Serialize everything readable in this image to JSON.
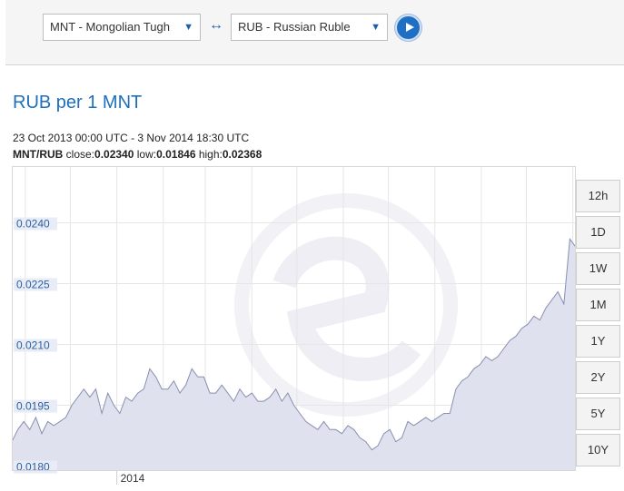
{
  "converter": {
    "from_currency": "MNT - Mongolian Tugh",
    "to_currency": "RUB - Russian Ruble",
    "swap_symbol": "↔",
    "dropdown_caret": "▼"
  },
  "title": "RUB per 1 MNT",
  "date_range": "23 Oct 2013 00:00 UTC - 3 Nov 2014 18:30 UTC",
  "stats": {
    "pair": "MNT/RUB",
    "close_label": "close:",
    "close": "0.02340",
    "low_label": "low:",
    "low": "0.01846",
    "high_label": "high:",
    "high": "0.02368"
  },
  "periods": [
    "12h",
    "1D",
    "1W",
    "1M",
    "1Y",
    "2Y",
    "5Y",
    "10Y"
  ],
  "colors": {
    "accent": "#1d6fbf",
    "line": "#8890b0",
    "fill": "#dfe1ee"
  },
  "chart_data": {
    "type": "area",
    "xlabel": "",
    "ylabel": "",
    "x_tick_labels": [
      "2014"
    ],
    "y_tick_labels": [
      "0.0180",
      "0.0195",
      "0.0210",
      "0.0225",
      "0.0240"
    ],
    "y_ticks": [
      0.018,
      0.0195,
      0.021,
      0.0225,
      0.024
    ],
    "ylim": [
      0.0179,
      0.0254
    ],
    "xlim": [
      "2013-10-23",
      "2014-11-03"
    ],
    "grid": true,
    "series": [
      {
        "x": [
          "2013-10-23",
          "2013-10-27",
          "2013-10-31",
          "2013-11-04",
          "2013-11-08",
          "2013-11-12",
          "2013-11-16",
          "2013-11-20",
          "2013-11-24",
          "2013-11-28",
          "2013-12-02",
          "2013-12-06",
          "2013-12-10",
          "2013-12-14",
          "2013-12-18",
          "2013-12-22",
          "2013-12-26",
          "2013-12-30",
          "2014-01-03",
          "2014-01-07",
          "2014-01-11",
          "2014-01-15",
          "2014-01-19",
          "2014-01-23",
          "2014-01-27",
          "2014-01-31",
          "2014-02-04",
          "2014-02-08",
          "2014-02-12",
          "2014-02-16",
          "2014-02-20",
          "2014-02-24",
          "2014-02-28",
          "2014-03-04",
          "2014-03-08",
          "2014-03-12",
          "2014-03-16",
          "2014-03-20",
          "2014-03-24",
          "2014-03-28",
          "2014-04-01",
          "2014-04-05",
          "2014-04-09",
          "2014-04-13",
          "2014-04-17",
          "2014-04-21",
          "2014-04-25",
          "2014-04-29",
          "2014-05-03",
          "2014-05-07",
          "2014-05-11",
          "2014-05-15",
          "2014-05-19",
          "2014-05-23",
          "2014-05-27",
          "2014-05-31",
          "2014-06-04",
          "2014-06-08",
          "2014-06-12",
          "2014-06-16",
          "2014-06-20",
          "2014-06-24",
          "2014-06-28",
          "2014-07-02",
          "2014-07-06",
          "2014-07-10",
          "2014-07-14",
          "2014-07-18",
          "2014-07-22",
          "2014-07-26",
          "2014-07-30",
          "2014-08-03",
          "2014-08-07",
          "2014-08-11",
          "2014-08-15",
          "2014-08-19",
          "2014-08-23",
          "2014-08-27",
          "2014-08-31",
          "2014-09-04",
          "2014-09-08",
          "2014-09-12",
          "2014-09-16",
          "2014-09-20",
          "2014-09-24",
          "2014-09-28",
          "2014-10-02",
          "2014-10-06",
          "2014-10-10",
          "2014-10-14",
          "2014-10-18",
          "2014-10-22",
          "2014-10-26",
          "2014-10-30",
          "2014-11-03"
        ],
        "y": [
          0.0186,
          0.0189,
          0.0191,
          0.0189,
          0.0192,
          0.0188,
          0.0191,
          0.019,
          0.0191,
          0.0192,
          0.0195,
          0.0197,
          0.0199,
          0.0197,
          0.0199,
          0.0193,
          0.0198,
          0.0195,
          0.0193,
          0.0197,
          0.0196,
          0.0198,
          0.0199,
          0.0204,
          0.0202,
          0.0199,
          0.0199,
          0.0201,
          0.0198,
          0.02,
          0.0204,
          0.0202,
          0.0202,
          0.0198,
          0.0198,
          0.02,
          0.0198,
          0.0196,
          0.0199,
          0.0197,
          0.0198,
          0.0196,
          0.0196,
          0.0197,
          0.0199,
          0.0196,
          0.0198,
          0.0195,
          0.0193,
          0.0191,
          0.019,
          0.0189,
          0.0191,
          0.0189,
          0.0189,
          0.0188,
          0.019,
          0.0189,
          0.0187,
          0.0186,
          0.0184,
          0.0185,
          0.0188,
          0.0189,
          0.0186,
          0.0187,
          0.0191,
          0.019,
          0.0191,
          0.0192,
          0.0191,
          0.0192,
          0.0193,
          0.0193,
          0.0199,
          0.0201,
          0.0202,
          0.0204,
          0.0205,
          0.0207,
          0.0206,
          0.0207,
          0.0209,
          0.0211,
          0.0212,
          0.0214,
          0.0215,
          0.0217,
          0.0216,
          0.0219,
          0.0221,
          0.0223,
          0.022,
          0.0236,
          0.0234
        ]
      }
    ]
  }
}
